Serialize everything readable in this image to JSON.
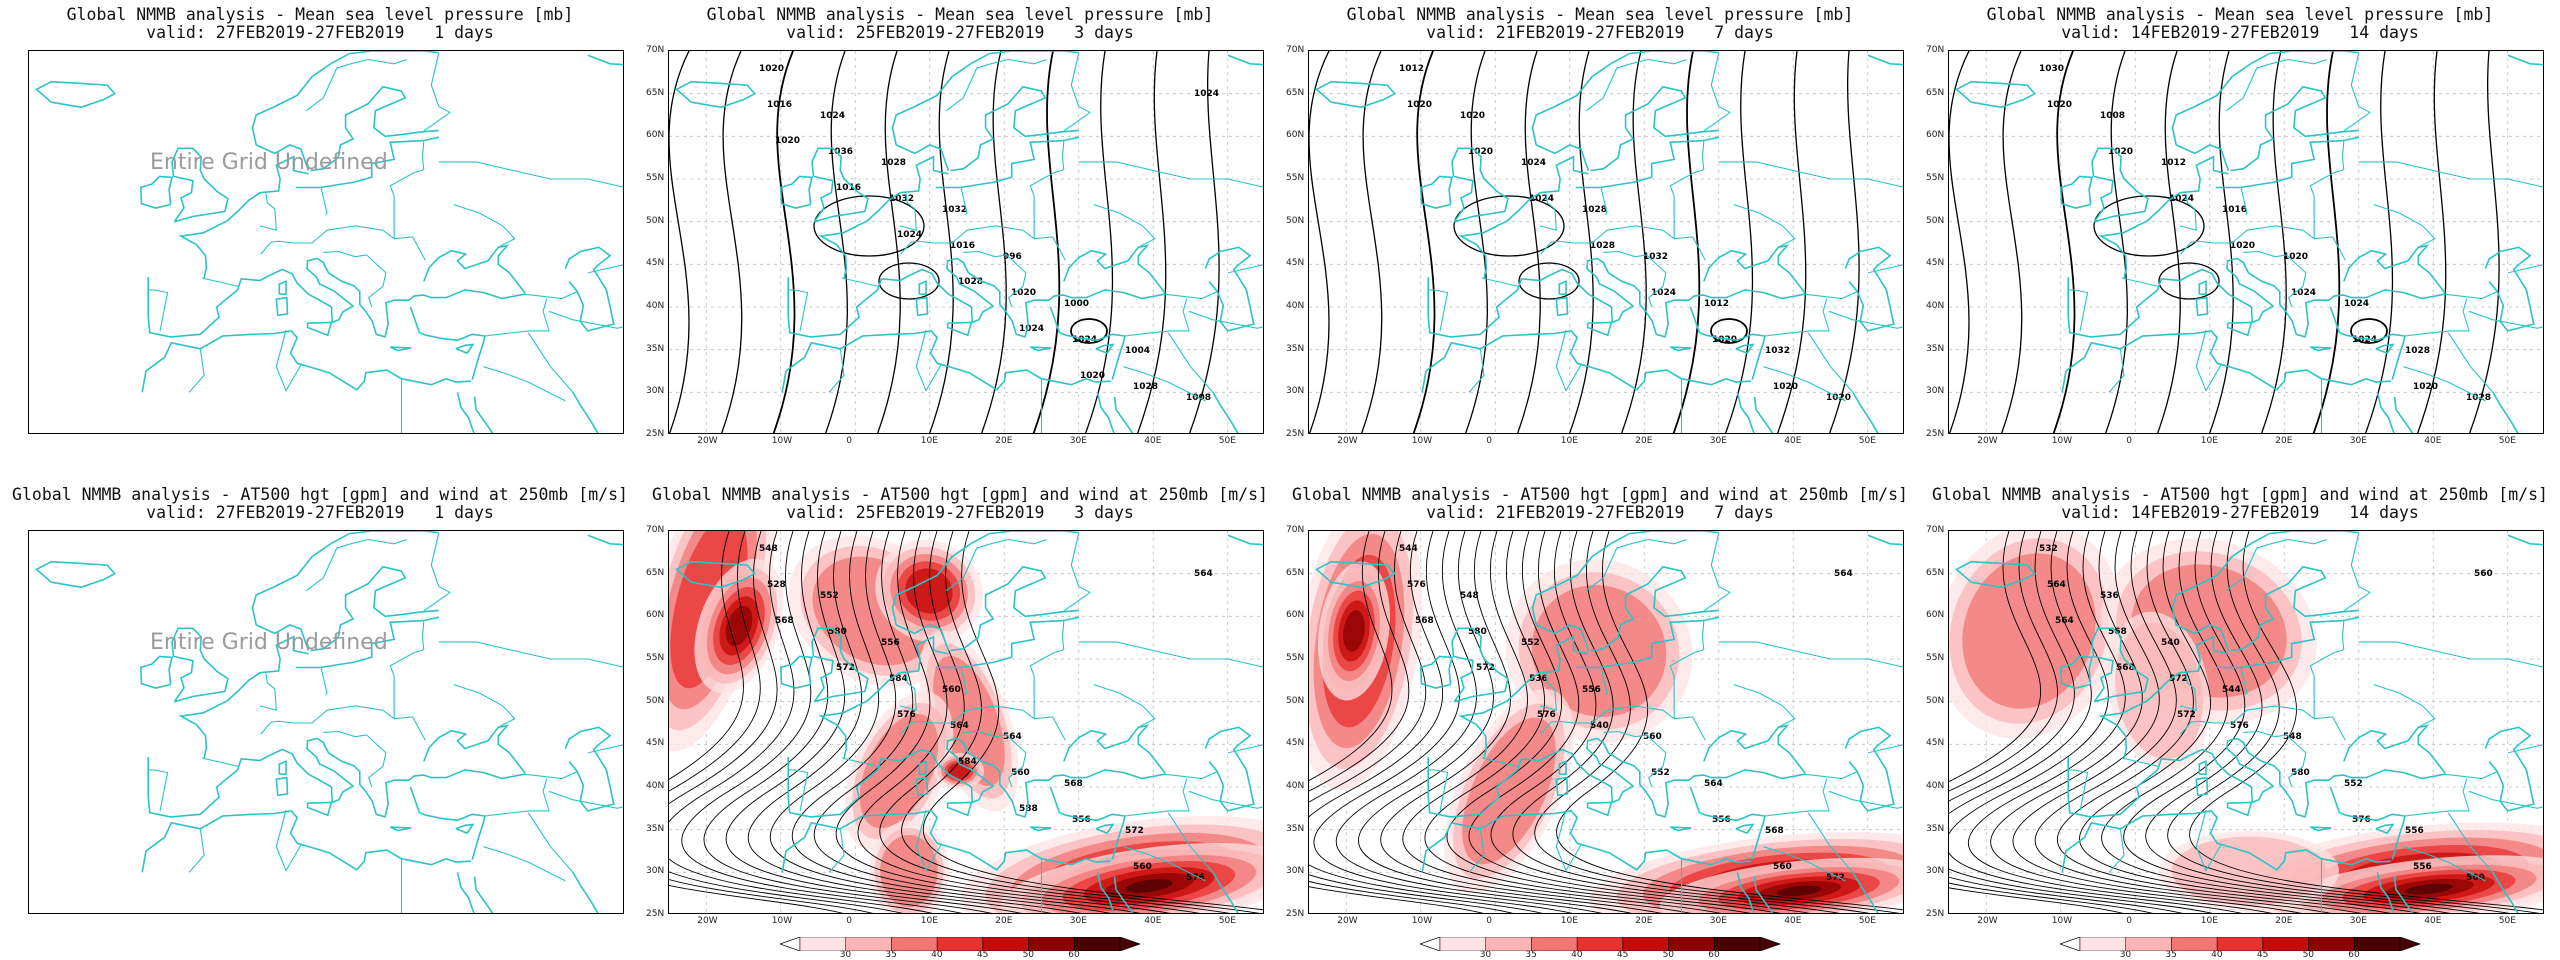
{
  "panels": [
    {
      "row": 0,
      "col": 0,
      "title1": "Global NMMB analysis - Mean sea level pressure [mb]",
      "title2": "valid: 27FEB2019-27FEB2019   1 days",
      "kind": "mslp",
      "undefined": true,
      "undefined_text": "Entire Grid Undefined",
      "contour_labels": []
    },
    {
      "row": 0,
      "col": 1,
      "title1": "Global NMMB analysis - Mean sea level pressure [mb]",
      "title2": "valid: 25FEB2019-27FEB2019   3 days",
      "kind": "mslp",
      "undefined": false,
      "contour_labels": [
        "1020",
        "1024",
        "1028",
        "1032",
        "996",
        "1000",
        "1004",
        "1008",
        "1016",
        "1036",
        "1032",
        "1016",
        "1020",
        "1024",
        "1028",
        "1024",
        "1020",
        "1016",
        "1024",
        "1028",
        "1024",
        "1020"
      ]
    },
    {
      "row": 0,
      "col": 2,
      "title1": "Global NMMB analysis - Mean sea level pressure [mb]",
      "title2": "valid: 21FEB2019-27FEB2019   7 days",
      "kind": "mslp",
      "undefined": false,
      "contour_labels": [
        "1012",
        "1020",
        "1024",
        "1028",
        "1032",
        "1012",
        "1032",
        "1020",
        "1020",
        "1020",
        "1024",
        "1028",
        "1024",
        "1020",
        "1020"
      ]
    },
    {
      "row": 0,
      "col": 3,
      "title1": "Global NMMB analysis - Mean sea level pressure [mb]",
      "title2": "valid: 14FEB2019-27FEB2019   14 days",
      "kind": "mslp",
      "undefined": false,
      "contour_labels": [
        "1030",
        "1008",
        "1012",
        "1016",
        "1020",
        "1024",
        "1028",
        "1028",
        "1020",
        "1020",
        "1024",
        "1020",
        "1024",
        "1024",
        "1020"
      ]
    },
    {
      "row": 1,
      "col": 0,
      "title1": "Global NMMB analysis - AT500 hgt [gpm] and wind at 250mb [m/s]",
      "title2": "valid: 27FEB2019-27FEB2019   1 days",
      "kind": "z500",
      "undefined": true,
      "undefined_text": "Entire Grid Undefined",
      "contour_labels": []
    },
    {
      "row": 1,
      "col": 1,
      "title1": "Global NMMB analysis - AT500 hgt [gpm] and wind at 250mb [m/s]",
      "title2": "valid: 25FEB2019-27FEB2019   3 days",
      "kind": "z500",
      "undefined": false,
      "contour_labels": [
        "548",
        "552",
        "556",
        "560",
        "564",
        "568",
        "572",
        "576",
        "528",
        "580",
        "584",
        "564",
        "560",
        "556",
        "560",
        "564",
        "568",
        "572",
        "576",
        "584",
        "588"
      ]
    },
    {
      "row": 1,
      "col": 2,
      "title1": "Global NMMB analysis - AT500 hgt [gpm] and wind at 250mb [m/s]",
      "title2": "valid: 21FEB2019-27FEB2019   7 days",
      "kind": "z500",
      "undefined": false,
      "contour_labels": [
        "544",
        "548",
        "552",
        "556",
        "560",
        "564",
        "568",
        "572",
        "576",
        "580",
        "536",
        "540",
        "552",
        "556",
        "560",
        "564",
        "568",
        "572",
        "576"
      ]
    },
    {
      "row": 1,
      "col": 3,
      "title1": "Global NMMB analysis - AT500 hgt [gpm] and wind at 250mb [m/s]",
      "title2": "valid: 14FEB2019-27FEB2019   14 days",
      "kind": "z500",
      "undefined": false,
      "contour_labels": [
        "532",
        "536",
        "540",
        "544",
        "548",
        "552",
        "556",
        "560",
        "564",
        "568",
        "572",
        "576",
        "580",
        "576",
        "556",
        "560",
        "564",
        "568",
        "572"
      ]
    }
  ],
  "axes": {
    "lat_labels": [
      "70N",
      "65N",
      "60N",
      "55N",
      "50N",
      "45N",
      "40N",
      "35N",
      "30N",
      "25N"
    ],
    "lon_labels": [
      "20W",
      "10W",
      "0",
      "10E",
      "20E",
      "30E",
      "40E",
      "50E"
    ]
  },
  "colorbar": {
    "ticks": [
      "30",
      "35",
      "40",
      "45",
      "50",
      "60"
    ],
    "colors": [
      "#fde3e3",
      "#f9b5b5",
      "#f27676",
      "#e83131",
      "#c40a0a",
      "#8a0000",
      "#4a0303"
    ]
  },
  "colors": {
    "coast": "#2bc3c3",
    "contour": "#000000",
    "grid": "#bdbdbd"
  }
}
